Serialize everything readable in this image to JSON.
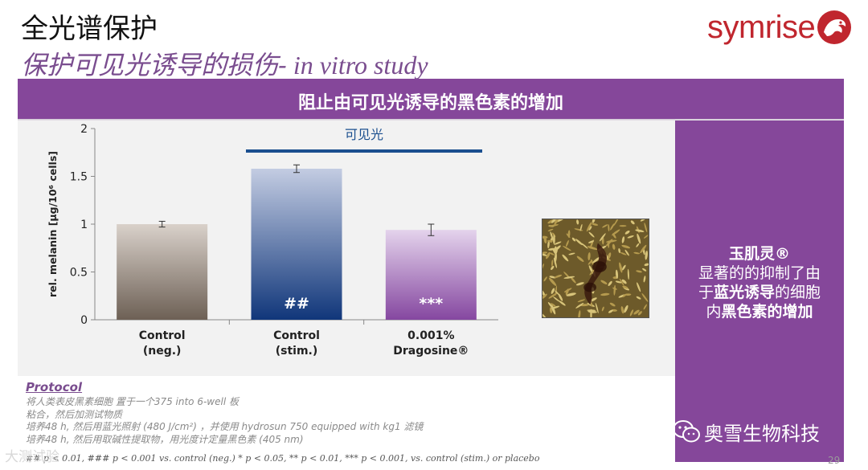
{
  "header": {
    "title": "全光谱保护",
    "subtitle_cn": "保护可见光诱导的损伤-",
    "subtitle_en": " in vitro study",
    "logo_text": "symrise",
    "logo_icon": "dragon-emblem-icon"
  },
  "banner": {
    "text": "阻止由可见光诱导的黑色素的增加"
  },
  "chart_data": {
    "type": "bar",
    "ylabel": "rel. melanin [µg/10⁶ cells]",
    "ylim": [
      0,
      2
    ],
    "yticks": [
      "0",
      "0.5",
      "1",
      "1.5",
      "2"
    ],
    "categories": [
      {
        "line1": "Control",
        "line2": "(neg.)"
      },
      {
        "line1": "Control",
        "line2": "(stim.)"
      },
      {
        "line1": "0.001%",
        "line2": "Dragosine®"
      }
    ],
    "values": [
      1.0,
      1.58,
      0.94
    ],
    "errors": [
      0.03,
      0.04,
      0.06
    ],
    "significance": [
      "",
      "##",
      "***"
    ],
    "bracket_label": "可见光",
    "bar_colors": [
      [
        "#d9d1ca",
        "#6d6055"
      ],
      [
        "#c3cce2",
        "#10367a"
      ],
      [
        "#e4d3ec",
        "#8547a0"
      ]
    ],
    "bracket_color": "#1b4f8f"
  },
  "sidebar": {
    "line1": "玉肌灵®",
    "line2": "显著的的抑制了由",
    "line3_pre": "于",
    "line3_bold": "蓝光诱导",
    "line3_post": "的细胞",
    "line4_pre": "内",
    "line4_bold": "黑色素的增加"
  },
  "wechat": {
    "text": "奥雪生物科技",
    "icon": "wechat-icon"
  },
  "protocol": {
    "title": "Protocol",
    "line1": "将人类表皮黑素细胞 置于一个375 into 6-well 板",
    "line2": "粘合，然后加测试物质",
    "line3": "培养48 h, 然后用蓝光照射 (480 J/cm²) ，并使用 hydrosun 750 equipped with kg1 滤镜",
    "line4": "培养48 h, 然后用取碱性提取物，用光度计定量黑色素 (405 nm)",
    "footnote": "## p < 0.01, ### p < 0.001 vs. control (neg.)   * p < 0.05, ** p < 0.01, *** p < 0.001, vs. control (stim.) or placebo"
  },
  "watermark": "大测试验",
  "page_number": "29"
}
